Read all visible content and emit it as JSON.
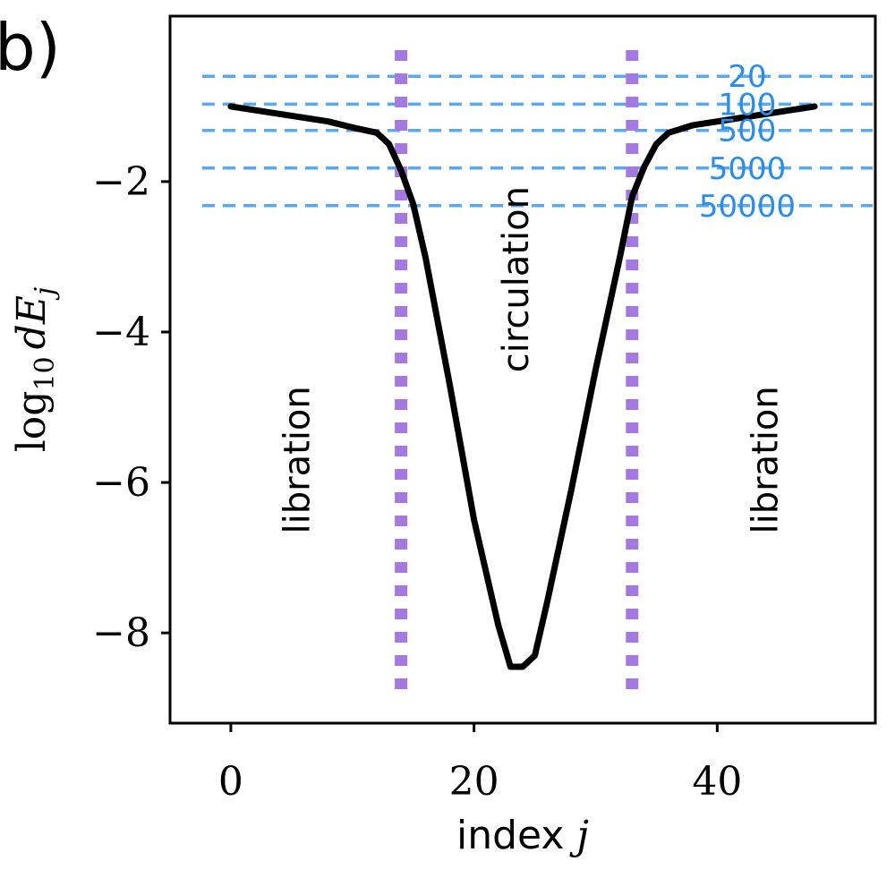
{
  "panel_label": "b)",
  "chart_data": {
    "type": "line",
    "title": "",
    "xlabel": {
      "text": "index ",
      "var": "j"
    },
    "ylabel": {
      "log": "log",
      "sub": "10",
      "var": "dE",
      "var_sub": "j"
    },
    "xlim": [
      -5,
      53
    ],
    "ylim": [
      -9.2,
      0.2
    ],
    "xticks": [
      {
        "value": 0,
        "label": "0"
      },
      {
        "value": 20,
        "label": "20"
      },
      {
        "value": 40,
        "label": "40"
      }
    ],
    "yticks": [
      {
        "value": -2,
        "label": "−2"
      },
      {
        "value": -4,
        "label": "−4"
      },
      {
        "value": -6,
        "label": "−6"
      },
      {
        "value": -8,
        "label": "−8"
      }
    ],
    "series": [
      {
        "name": "log10 dE_j",
        "color": "#000000",
        "x": [
          0,
          4,
          8,
          10,
          12,
          13,
          14,
          15,
          16,
          18,
          20,
          22,
          23,
          24,
          25,
          26,
          28,
          30,
          32,
          33,
          34,
          35,
          36,
          38,
          42,
          48
        ],
        "y": [
          -1.0,
          -1.1,
          -1.2,
          -1.28,
          -1.35,
          -1.5,
          -1.85,
          -2.3,
          -3.0,
          -4.7,
          -6.5,
          -7.9,
          -8.45,
          -8.45,
          -8.3,
          -7.6,
          -6.1,
          -4.5,
          -3.0,
          -2.2,
          -1.8,
          -1.5,
          -1.35,
          -1.25,
          -1.15,
          -1.0
        ]
      }
    ],
    "thresholds": [
      {
        "label": "20",
        "value": -0.6,
        "color": "#5aa9f0"
      },
      {
        "label": "100",
        "value": -0.97,
        "color": "#5aa9f0"
      },
      {
        "label": "500",
        "value": -1.32,
        "color": "#5aa9f0"
      },
      {
        "label": "5000",
        "value": -1.82,
        "color": "#5aa9f0"
      },
      {
        "label": "50000",
        "value": -2.32,
        "color": "#5aa9f0"
      }
    ],
    "boundaries": [
      {
        "x": 14,
        "color": "#a47ae0"
      },
      {
        "x": 33,
        "color": "#a47ae0"
      }
    ],
    "region_labels": [
      {
        "text": "libration",
        "x": 5.5,
        "y": -5.7
      },
      {
        "text": "circulation",
        "x": 23.5,
        "y": -3.3
      },
      {
        "text": "libration",
        "x": 44,
        "y": -5.7
      }
    ],
    "threshold_label_color": "#2a8de9"
  }
}
